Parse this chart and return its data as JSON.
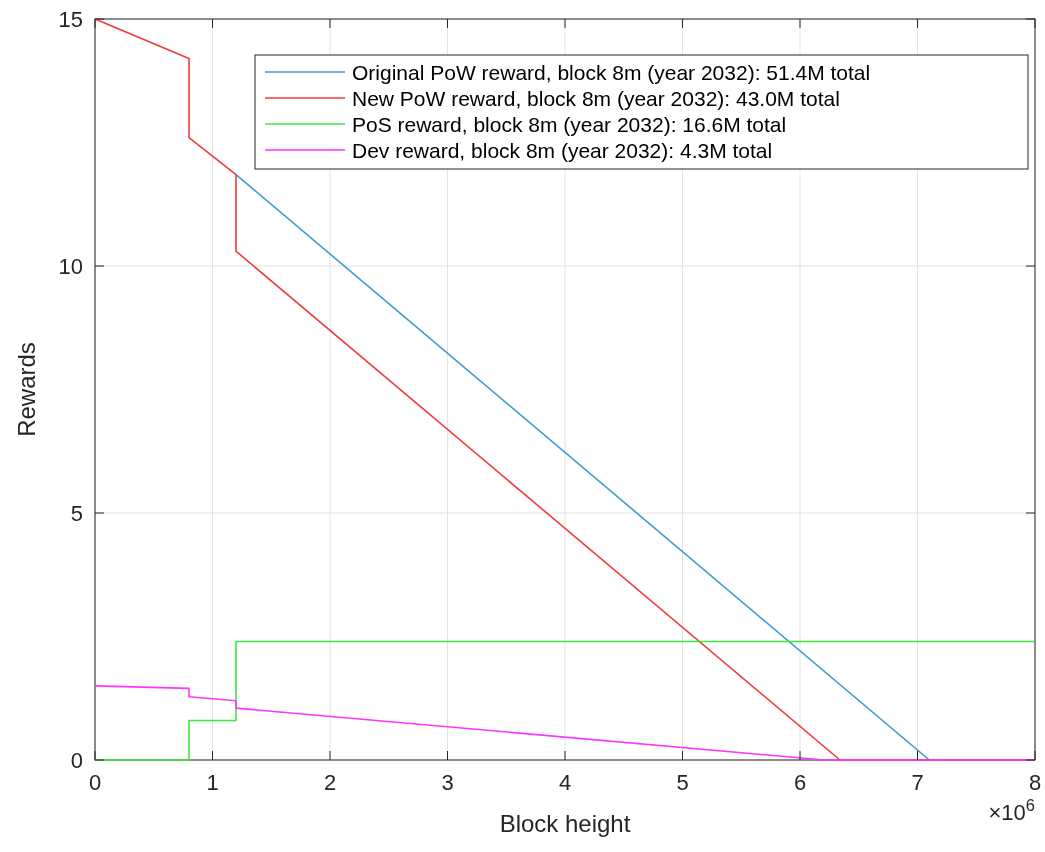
{
  "chart_data": {
    "type": "line",
    "xlabel": "Block height",
    "ylabel": "Rewards",
    "annotations": [
      "×10$^{6}$"
    ],
    "xlim": [
      0,
      8
    ],
    "ylim": [
      0,
      15
    ],
    "xticks": [
      0,
      1,
      2,
      3,
      4,
      5,
      6,
      7,
      8
    ],
    "yticks": [
      0,
      5,
      10,
      15
    ],
    "grid": true,
    "legend": "top right",
    "marker": "none",
    "line_style": "solid",
    "series": [
      {
        "name": "Original PoW reward, block 8m (year 2032): 51.4M total",
        "color": "#3d9ad6",
        "x": [
          1.2,
          7.1,
          8
        ],
        "values": [
          11.85,
          0,
          0
        ]
      },
      {
        "name": "New PoW reward, block 8m (year 2032): 43.0M total",
        "color": "#f03c3c",
        "x": [
          0,
          0.8,
          0.8,
          1.2,
          1.2,
          6.34,
          8
        ],
        "values": [
          15,
          14.2,
          12.6,
          11.85,
          10.3,
          0,
          0
        ]
      },
      {
        "name": "PoS reward, block 8m (year 2032): 16.6M total",
        "color": "#3ee83e",
        "x": [
          0,
          0.8,
          0.8,
          1.2,
          1.2,
          8
        ],
        "values": [
          0,
          0,
          0.8,
          0.8,
          2.4,
          2.4
        ]
      },
      {
        "name": "Dev reward, block 8m (year 2032): 4.3M total",
        "color": "#ff33ff",
        "x": [
          0,
          0.8,
          0.8,
          1.2,
          1.2,
          6.2,
          8
        ],
        "values": [
          1.5,
          1.45,
          1.28,
          1.2,
          1.05,
          0,
          0
        ]
      }
    ]
  }
}
